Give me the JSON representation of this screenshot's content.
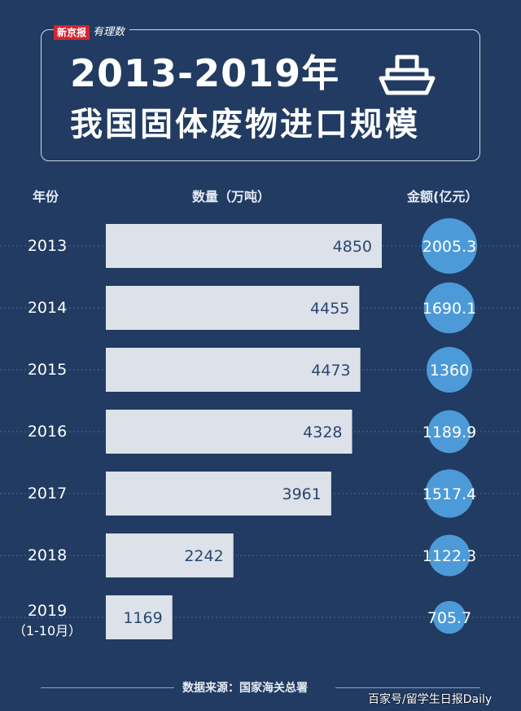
{
  "logo": {
    "brand": "新京报",
    "script": "有理数"
  },
  "title": {
    "line1": "2013-2019年",
    "line2": "我国固体废物进口规模"
  },
  "icons": {
    "title": "cargo-ship-icon"
  },
  "headers": {
    "year": "年份",
    "quantity": "数量（万吨）",
    "amount": "金额(亿元）"
  },
  "colors": {
    "background": "#213b62",
    "bar": "#dde2ea",
    "bar_text": "#2a4670",
    "bubble": "#4d9ad8"
  },
  "chart_data": {
    "type": "bar",
    "orientation": "horizontal",
    "categories": [
      "2013",
      "2014",
      "2015",
      "2016",
      "2017",
      "2018",
      "2019"
    ],
    "category_notes": [
      "",
      "",
      "",
      "",
      "",
      "",
      "（1-10月）"
    ],
    "series": [
      {
        "name": "数量（万吨）",
        "values": [
          4850,
          4455,
          4473,
          4328,
          3961,
          2242,
          1169
        ]
      },
      {
        "name": "金额(亿元）",
        "values": [
          2005.3,
          1690.1,
          1360,
          1189.9,
          1517.4,
          1122.3,
          705.7
        ]
      }
    ],
    "value_labels": {
      "quantity": [
        "4850",
        "4455",
        "4473",
        "4328",
        "3961",
        "2242",
        "1169"
      ],
      "amount": [
        "2005.3",
        "1690.1",
        "1360",
        "1189.9",
        "1517.4",
        "1122.3",
        "705.7"
      ]
    },
    "grid": "dashed row guides"
  },
  "footer": {
    "source": "数据来源：国家海关总署",
    "watermark": "百家号/留学生日报Daily"
  }
}
